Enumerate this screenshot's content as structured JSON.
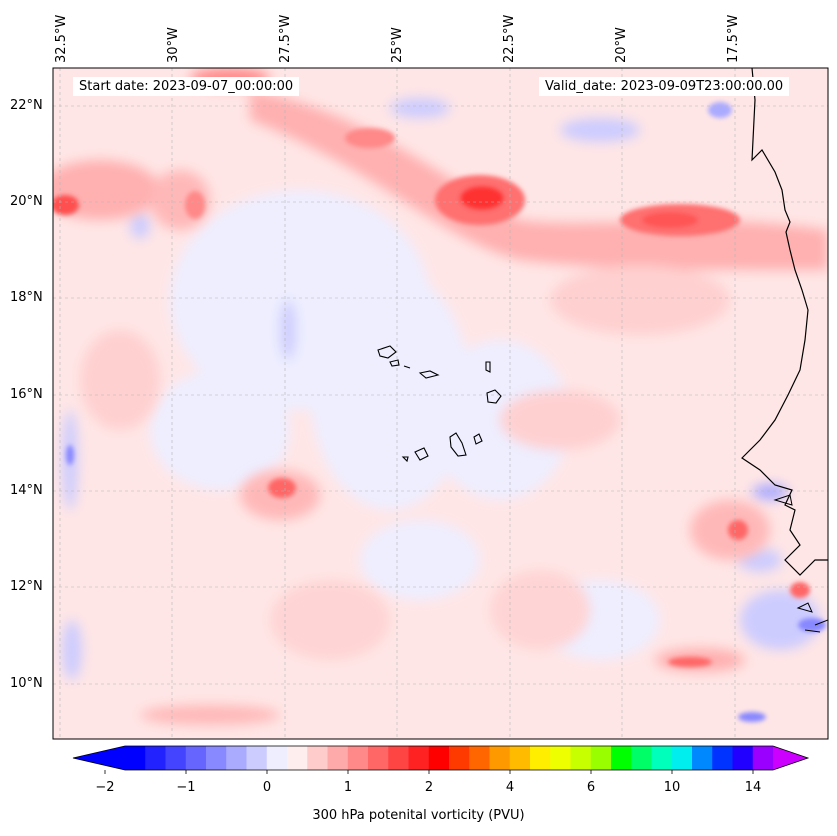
{
  "map": {
    "start_label": "Start date: 2023-09-07_00:00:00",
    "valid_label": "Valid_date: 2023-09-09T23:00:00.00",
    "lon_labels": [
      "32.5°W",
      "30°W",
      "27.5°W",
      "25°W",
      "22.5°W",
      "20°W",
      "17.5°W"
    ],
    "lat_labels": [
      "22°N",
      "20°N",
      "18°N",
      "16°N",
      "14°N",
      "12°N",
      "10°N"
    ],
    "extent": {
      "lon_min": -32.7,
      "lon_max": -15.4,
      "lat_min": 8.9,
      "lat_max": 22.8
    }
  },
  "colorbar": {
    "title": "300 hPa potenital vorticity (PVU)",
    "tick_labels": [
      "−2",
      "−1",
      "0",
      "1",
      "2",
      "4",
      "6",
      "10",
      "14"
    ],
    "colors": [
      "#0000ff",
      "#2222ff",
      "#4444ff",
      "#6666ff",
      "#8888ff",
      "#aaaaff",
      "#ccccff",
      "#eeeeff",
      "#ffeeee",
      "#ffcccc",
      "#ffaaaa",
      "#ff8888",
      "#ff6666",
      "#ff4444",
      "#ff2222",
      "#ff0000",
      "#ff3a00",
      "#ff6600",
      "#ff9900",
      "#ffbb00",
      "#ffee00",
      "#eeff00",
      "#c8ff00",
      "#99ff00",
      "#00ff00",
      "#00ff66",
      "#00ffbb",
      "#00eeee",
      "#0088ff",
      "#0033ff",
      "#2200ff",
      "#9900ff"
    ],
    "extend_low": "#0000ff",
    "extend_high": "#cc00ff"
  }
}
